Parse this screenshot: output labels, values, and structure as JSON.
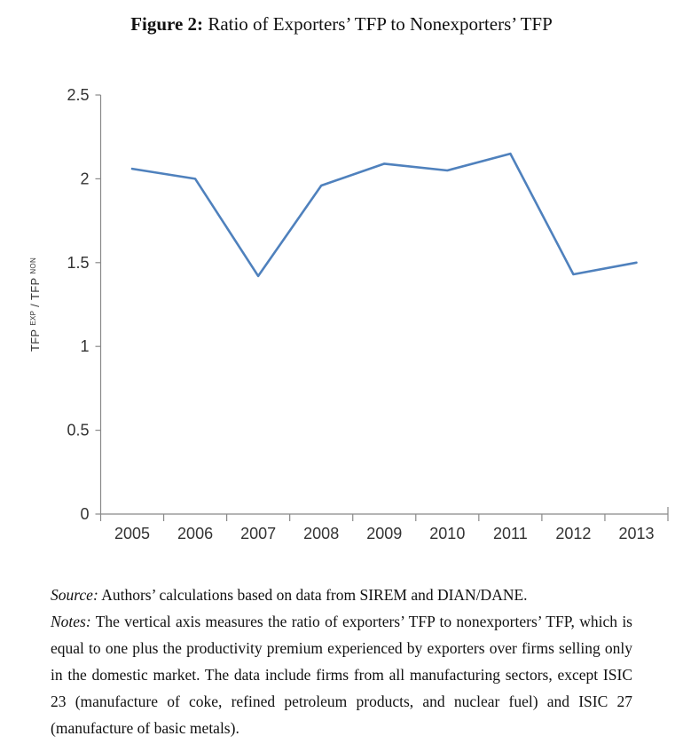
{
  "title": {
    "label": "Figure 2:",
    "text": "Ratio of Exporters’ TFP to Nonexporters’ TFP"
  },
  "chart_data": {
    "type": "line",
    "title": "",
    "categories": [
      "2005",
      "2006",
      "2007",
      "2008",
      "2009",
      "2010",
      "2011",
      "2012",
      "2013"
    ],
    "values": [
      2.06,
      2.0,
      1.42,
      1.96,
      2.09,
      2.05,
      2.15,
      1.43,
      1.5
    ],
    "xlabel": "",
    "ylabel": "TFP EXP / TFP NON",
    "ylabel_parts": [
      {
        "t": "TFP ",
        "sup": false
      },
      {
        "t": "EXP",
        "sup": true
      },
      {
        "t": " / TFP ",
        "sup": false
      },
      {
        "t": "NON",
        "sup": true
      }
    ],
    "ylim": [
      0,
      2.5
    ],
    "yticks": [
      0,
      0.5,
      1,
      1.5,
      2,
      2.5
    ],
    "ytick_labels": [
      "0",
      "0.5",
      "1",
      "1.5",
      "2",
      "2.5"
    ],
    "grid": false,
    "legend": "none",
    "line_color": "#4F81BD",
    "axis_color": "#898989",
    "tick_label_color": "#333333"
  },
  "notes": {
    "source_label": "Source:",
    "source_text": "Authors’ calculations based on data from SIREM and DIAN/DANE.",
    "notes_label": "Notes:",
    "notes_text": "The vertical axis measures the ratio of exporters’ TFP to nonexporters’ TFP, which is equal to one plus the productivity premium experienced by exporters over firms selling only in the domestic market. The data include firms from all manufacturing sectors, except ISIC 23 (manufacture of coke, refined petroleum products, and nuclear fuel) and ISIC 27 (manufacture of basic metals)."
  }
}
